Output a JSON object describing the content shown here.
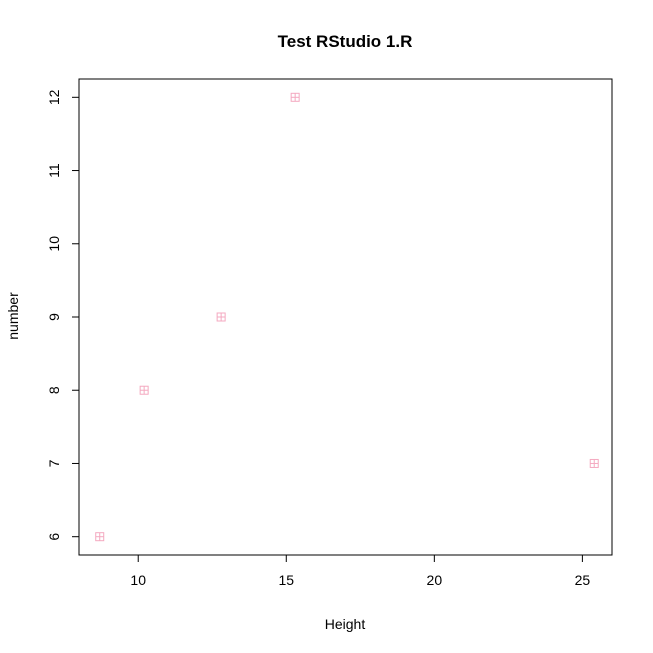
{
  "chart_data": {
    "type": "scatter",
    "title": "Test RStudio 1.R",
    "xlabel": "Height",
    "ylabel": "number",
    "xlim": [
      8.0,
      26.0
    ],
    "ylim": [
      5.75,
      12.25
    ],
    "x_ticks": [
      10,
      15,
      20,
      25
    ],
    "y_ticks": [
      6,
      7,
      8,
      9,
      10,
      11,
      12
    ],
    "x_tick_labels": [
      "10",
      "15",
      "20",
      "25"
    ],
    "y_tick_labels": [
      "6",
      "7",
      "8",
      "9",
      "10",
      "11",
      "12"
    ],
    "grid": false,
    "legend": "none",
    "marker": "square-plus",
    "marker_color": "#f4a9c0",
    "points": [
      {
        "x": 8.7,
        "y": 6
      },
      {
        "x": 10.2,
        "y": 8
      },
      {
        "x": 12.8,
        "y": 9
      },
      {
        "x": 15.3,
        "y": 12
      },
      {
        "x": 25.4,
        "y": 7
      }
    ]
  }
}
